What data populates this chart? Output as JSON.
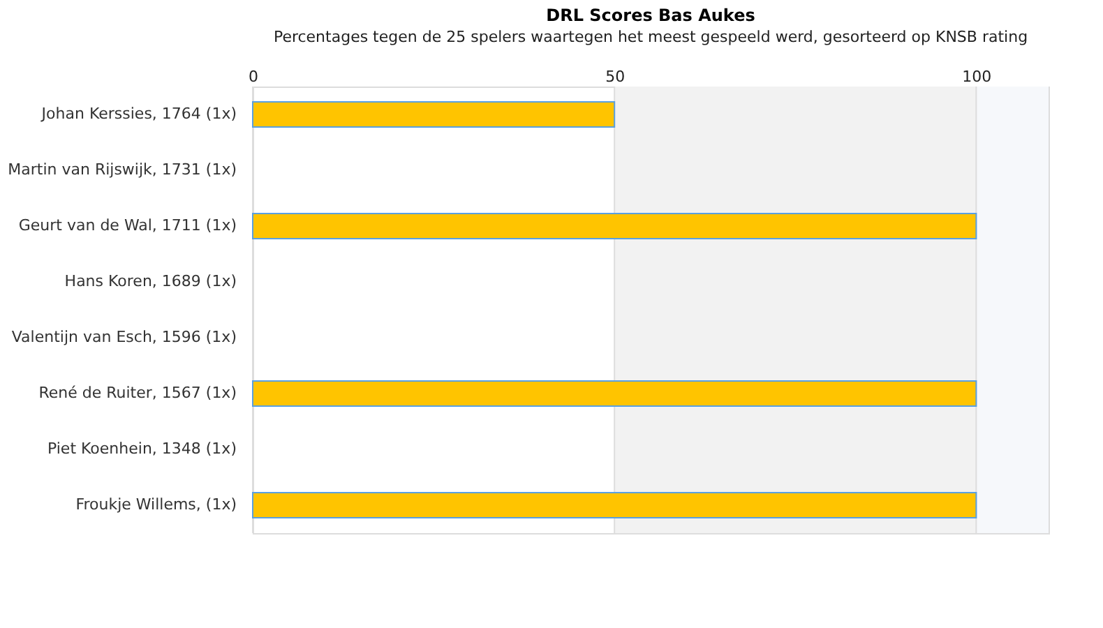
{
  "chart_data": {
    "type": "bar",
    "orientation": "horizontal",
    "title": "DRL Scores Bas Aukes",
    "subtitle": "Percentages tegen de 25 spelers waartegen het meest gespeeld werd, gesorteerd op KNSB rating",
    "categories": [
      "Johan Kerssies, 1764 (1x)",
      "Martin van Rijswijk, 1731 (1x)",
      "Geurt van de Wal, 1711 (1x)",
      "Hans Koren, 1689 (1x)",
      "Valentijn van Esch, 1596 (1x)",
      "René de Ruiter, 1567 (1x)",
      "Piet Koenhein, 1348 (1x)",
      "Froukje Willems,  (1x)"
    ],
    "series": [
      {
        "color": "#ffc400",
        "values": [
          50,
          0,
          100,
          0,
          0,
          100,
          0,
          100
        ]
      }
    ],
    "xlim": [
      0,
      110
    ],
    "xticks": [
      0,
      50,
      100
    ],
    "grid": "x",
    "bands": [
      {
        "axis": "x",
        "from": 50,
        "to": 100,
        "color": "#f2f2f2"
      },
      {
        "axis": "x",
        "from": 100,
        "to": 110,
        "color": "#f6f8fb"
      }
    ]
  }
}
